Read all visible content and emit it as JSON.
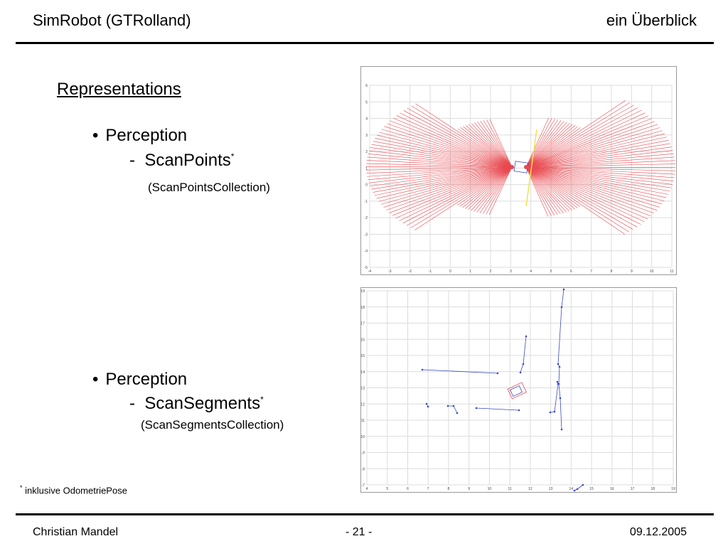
{
  "header": {
    "left": "SimRobot (GTRolland)",
    "right": "ein Überblick"
  },
  "section_title": "Representations",
  "bullets": [
    {
      "label": "Perception",
      "sub": "ScanPoints",
      "note": "(ScanPointsCollection)"
    },
    {
      "label": "Perception",
      "sub": "ScanSegments",
      "note": "(ScanSegmentsCollection)"
    }
  ],
  "marker": "*",
  "footnote": "inklusive OdometriePose",
  "footer": {
    "author": "Christian Mandel",
    "page": "- 21 -",
    "date": "09.12.2005"
  },
  "colors": {
    "rays": "#e8484f",
    "segments": "#3b49c4",
    "highlight": "#f2e34a",
    "grid": "#dcdcdc"
  },
  "plots": {
    "points": {
      "x_ticks": [
        "-4",
        "-3",
        "-2",
        "-1",
        "0",
        "1",
        "2",
        "3",
        "4",
        "5",
        "6",
        "7",
        "8",
        "9",
        "10",
        "11"
      ],
      "y_ticks": [
        "6",
        "5",
        "4",
        "3",
        "2",
        "1",
        "0",
        "-1",
        "-2",
        "-3",
        "-4",
        "-5"
      ]
    },
    "segments": {
      "x_ticks": [
        "4",
        "5",
        "6",
        "7",
        "8",
        "9",
        "10",
        "11",
        "12",
        "13",
        "14",
        "15",
        "16",
        "17",
        "18",
        "19"
      ],
      "y_ticks": [
        "-19",
        "-18",
        "-17",
        "-16",
        "-15",
        "-14",
        "-13",
        "-12",
        "-11",
        "-10",
        "-9",
        "-8",
        "-7"
      ]
    }
  }
}
